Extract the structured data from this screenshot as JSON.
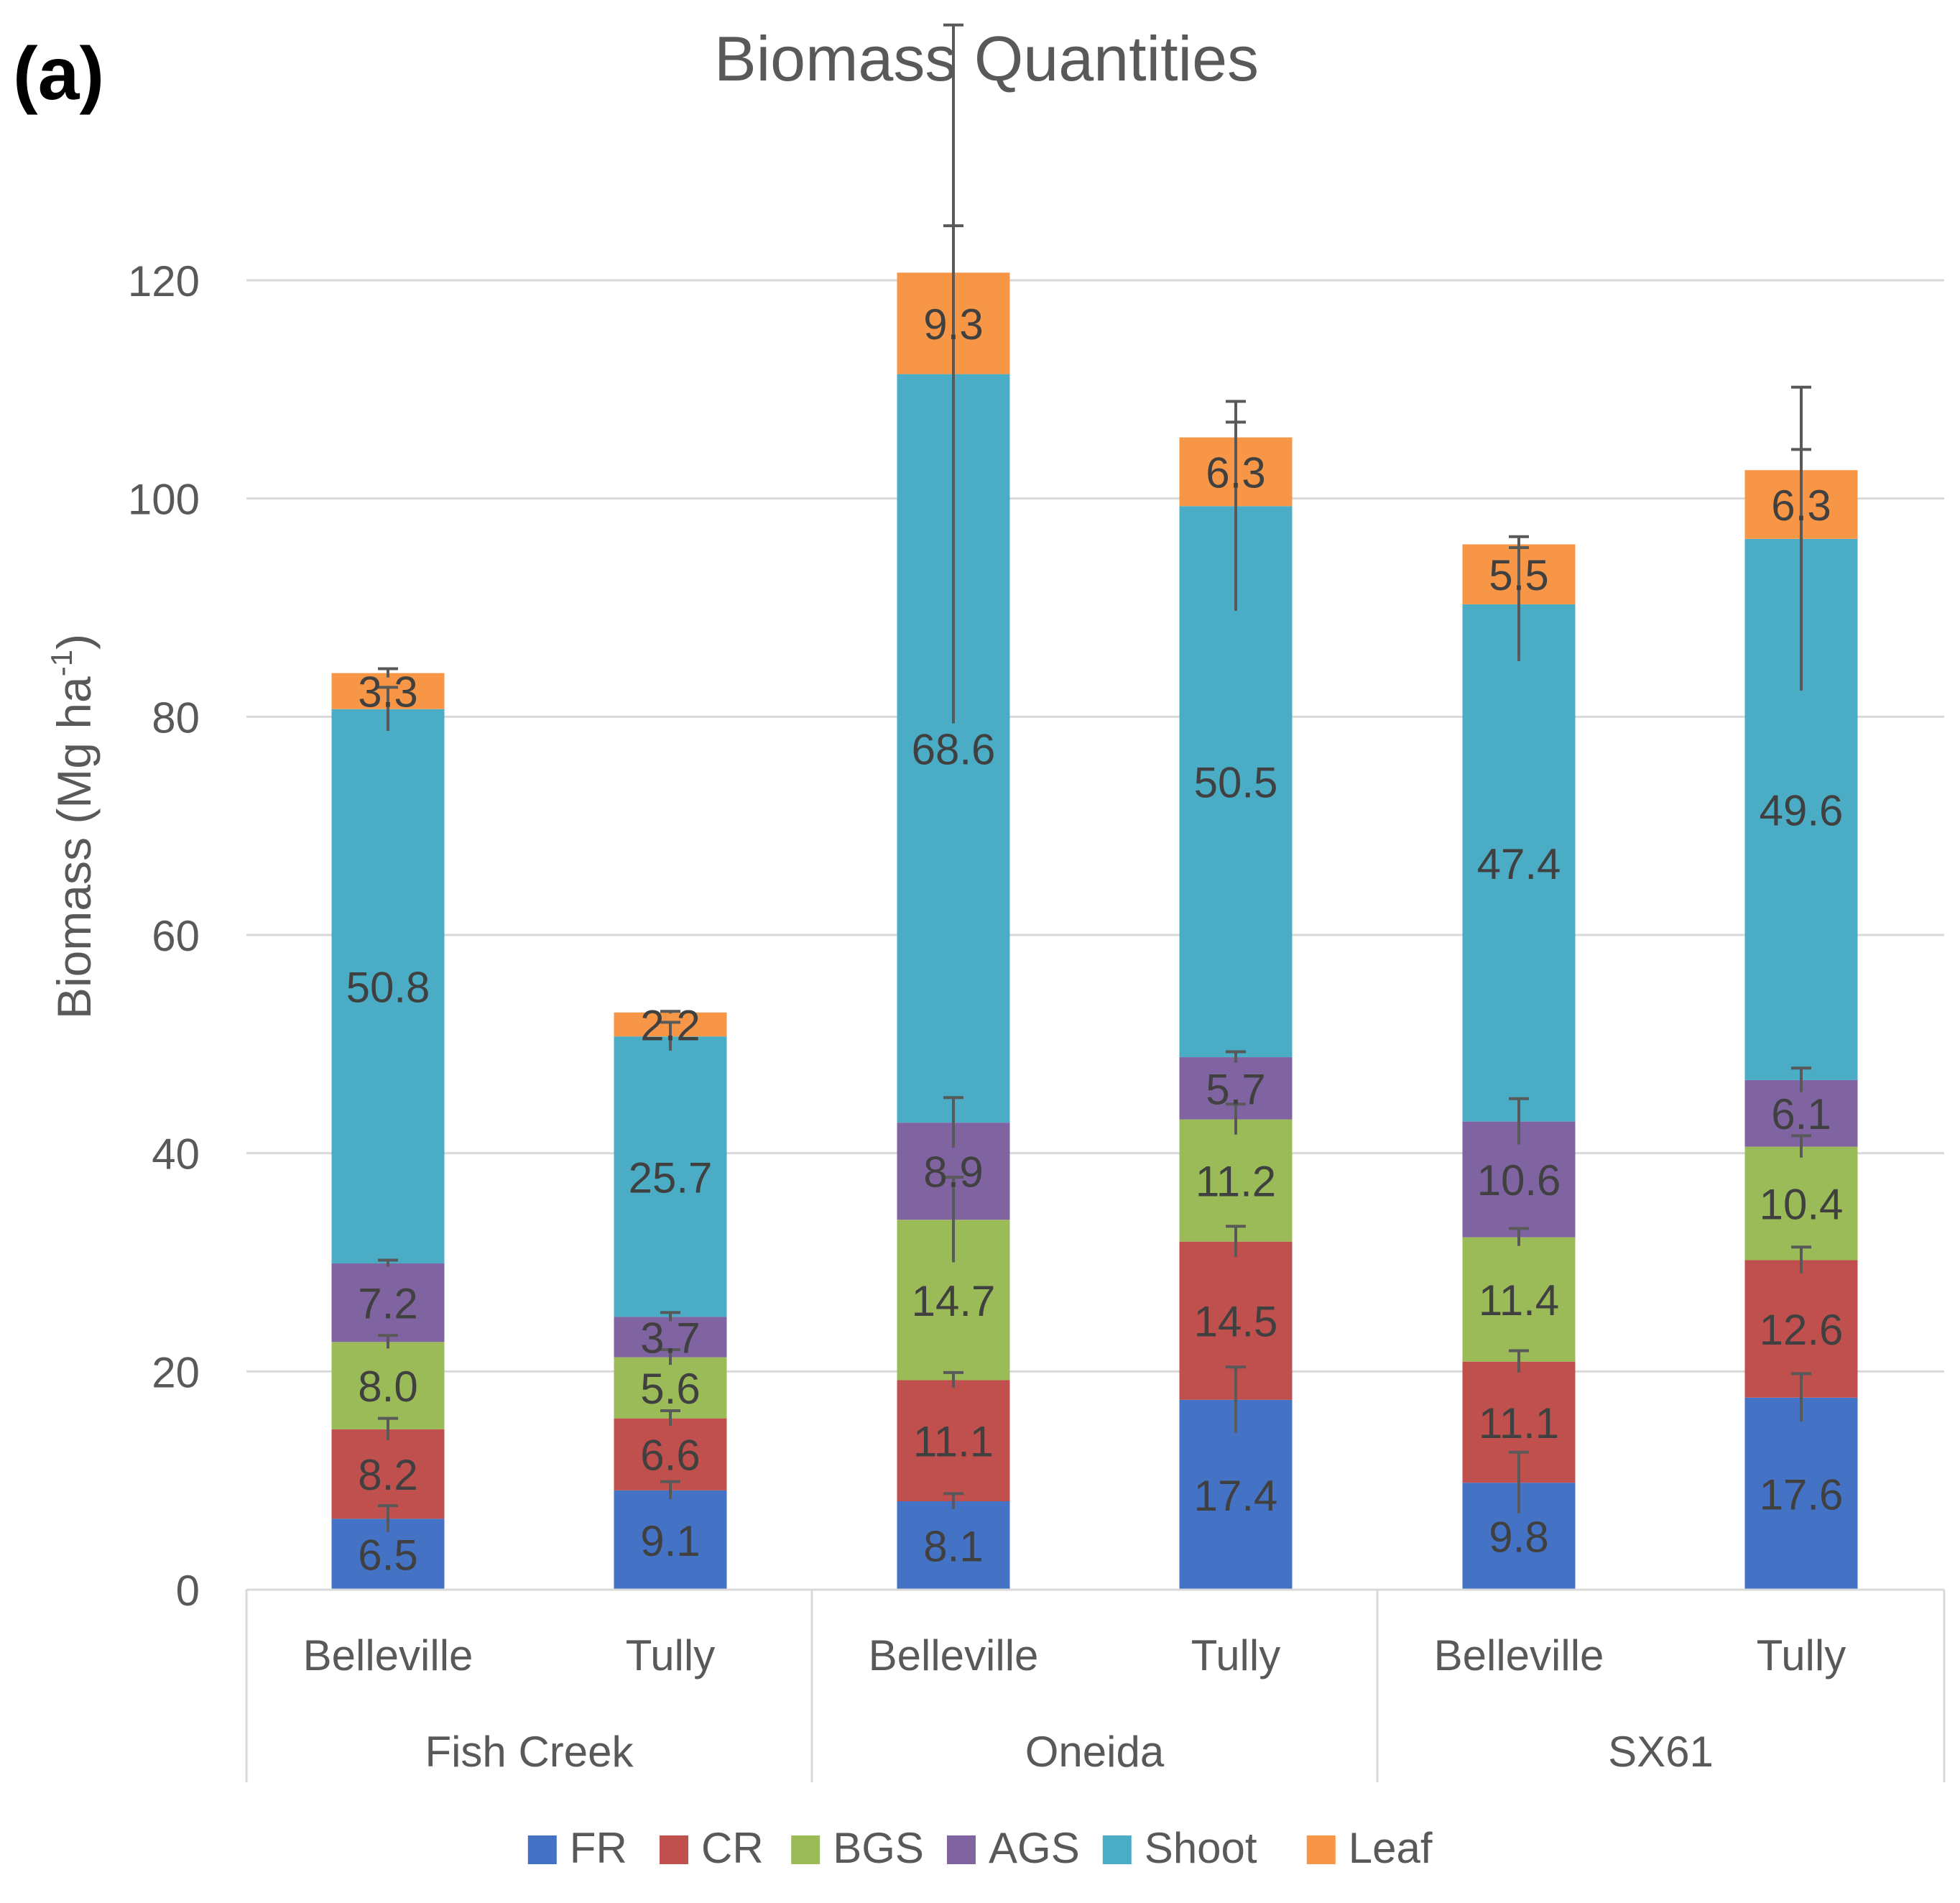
{
  "panel_label": "(a)",
  "chart_data": {
    "type": "bar",
    "stacked": true,
    "title": "Biomass Quantities",
    "ylabel": "Biomass (Mg ha",
    "ylabel_superscript": "-1",
    "ylabel_close": ")",
    "xlabel": "",
    "ylim": [
      0,
      120
    ],
    "yticks": [
      0,
      20,
      40,
      60,
      80,
      100,
      120
    ],
    "grid": true,
    "legend_position": "bottom",
    "groups": [
      {
        "label": "Fish Creek",
        "categories": [
          "Belleville",
          "Tully"
        ]
      },
      {
        "label": "Oneida",
        "categories": [
          "Belleville",
          "Tully"
        ]
      },
      {
        "label": "SX61",
        "categories": [
          "Belleville",
          "Tully"
        ]
      }
    ],
    "series": [
      {
        "name": "FR",
        "color": "#4472C4",
        "values": [
          6.5,
          9.1,
          8.1,
          17.4,
          9.8,
          17.6
        ],
        "error": [
          1.2,
          0.8,
          0.7,
          3.0,
          2.8,
          2.2
        ],
        "labels": [
          "6.5",
          "9.1",
          "8.1",
          "17.4",
          "9.8",
          "17.6"
        ]
      },
      {
        "name": "CR",
        "color": "#C0504D",
        "values": [
          8.2,
          6.6,
          11.1,
          14.5,
          11.1,
          12.6
        ],
        "error": [
          1.0,
          0.7,
          0.7,
          1.4,
          1.0,
          1.2
        ],
        "labels": [
          "8.2",
          "6.6",
          "11.1",
          "14.5",
          "11.1",
          "12.6"
        ]
      },
      {
        "name": "BGS",
        "color": "#9BBB59",
        "values": [
          8.0,
          5.6,
          14.7,
          11.2,
          11.4,
          10.4
        ],
        "error": [
          0.6,
          0.7,
          3.9,
          1.4,
          0.8,
          1.0
        ],
        "labels": [
          "8.0",
          "5.6",
          "14.7",
          "11.2",
          "11.4",
          "10.4"
        ]
      },
      {
        "name": "AGS",
        "color": "#8064A2",
        "values": [
          7.2,
          3.7,
          8.9,
          5.7,
          10.6,
          6.1
        ],
        "error": [
          0.3,
          0.4,
          2.3,
          0.5,
          2.1,
          1.1
        ],
        "labels": [
          "7.2",
          "3.7",
          "8.9",
          "5.7",
          "10.6",
          "6.1"
        ]
      },
      {
        "name": "Shoot",
        "color": "#4BACC6",
        "values": [
          50.8,
          25.7,
          68.6,
          50.5,
          47.4,
          49.6
        ],
        "error": [
          2.0,
          1.3,
          32.0,
          9.6,
          5.2,
          13.9
        ],
        "labels": [
          "50.8",
          "25.7",
          "68.6",
          "50.5",
          "47.4",
          "49.6"
        ]
      },
      {
        "name": "Leaf",
        "color": "#F79646",
        "values": [
          3.3,
          2.2,
          9.3,
          6.3,
          5.5,
          6.3
        ],
        "error": [
          0.4,
          0.1,
          4.3,
          1.4,
          0.7,
          1.9
        ],
        "labels": [
          "3.3",
          "2.2",
          "9.3",
          "6.3",
          "5.5",
          "6.3"
        ]
      }
    ]
  }
}
